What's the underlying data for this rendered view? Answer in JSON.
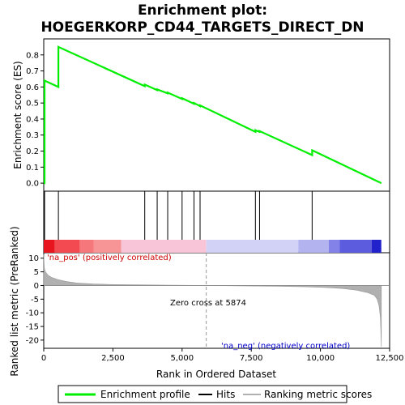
{
  "chart_data": {
    "type": "line",
    "title_line1": "Enrichment plot:",
    "title_line2": "HOEGERKORP_CD44_TARGETS_DIRECT_DN",
    "es_ylabel": "Enrichment score (ES)",
    "rank_ylabel": "Ranked list metric (PreRanked)",
    "xlabel": "Rank in Ordered Dataset",
    "xlim": [
      0,
      12500
    ],
    "es_ylim": [
      -0.05,
      0.9
    ],
    "rank_ylim": [
      -23,
      12
    ],
    "x_ticks": [
      0,
      2500,
      5000,
      7500,
      10000,
      12500
    ],
    "x_tick_labels": [
      "0",
      "2,500",
      "5,000",
      "7,500",
      "10,000",
      "12,500"
    ],
    "es_ticks": [
      0.0,
      0.1,
      0.2,
      0.3,
      0.4,
      0.5,
      0.6,
      0.7,
      0.8
    ],
    "es_tick_labels": [
      "0.0",
      "0.1",
      "0.2",
      "0.3",
      "0.4",
      "0.5",
      "0.6",
      "0.7",
      "0.8"
    ],
    "rank_ticks": [
      10,
      5,
      0,
      -5,
      -10,
      -15,
      -20
    ],
    "rank_tick_labels": [
      "10",
      "5",
      "0",
      "-5",
      "-10",
      "-15",
      "-20"
    ],
    "es_profile": {
      "x": [
        0,
        30,
        30,
        530,
        530,
        3650,
        3650,
        4100,
        4100,
        4480,
        4480,
        5000,
        5000,
        5430,
        5430,
        5650,
        5650,
        7650,
        7650,
        7800,
        7800,
        9700,
        9700,
        12200
      ],
      "y": [
        0.0,
        0.0,
        0.64,
        0.6,
        0.85,
        0.605,
        0.615,
        0.58,
        0.585,
        0.56,
        0.565,
        0.525,
        0.53,
        0.495,
        0.5,
        0.48,
        0.485,
        0.32,
        0.33,
        0.32,
        0.325,
        0.175,
        0.205,
        0.0
      ]
    },
    "hits": [
      30,
      530,
      3650,
      4100,
      4480,
      5000,
      5430,
      5650,
      7650,
      7800,
      9700
    ],
    "heatmap_segments": [
      {
        "x0": 0,
        "x1": 400,
        "color": "#e8141e"
      },
      {
        "x0": 400,
        "x1": 1300,
        "color": "#f24a50"
      },
      {
        "x0": 1300,
        "x1": 1800,
        "color": "#f5777c"
      },
      {
        "x0": 1800,
        "x1": 2800,
        "color": "#f79495"
      },
      {
        "x0": 2800,
        "x1": 5874,
        "color": "#f8c4d8"
      },
      {
        "x0": 5874,
        "x1": 9200,
        "color": "#d2d2f6"
      },
      {
        "x0": 9200,
        "x1": 10300,
        "color": "#b3b3f0"
      },
      {
        "x0": 10300,
        "x1": 10700,
        "color": "#8282e8"
      },
      {
        "x0": 10700,
        "x1": 11850,
        "color": "#5c5cdf"
      },
      {
        "x0": 11850,
        "x1": 12200,
        "color": "#2222cc"
      }
    ],
    "ranked_metric": {
      "x": [
        0,
        20,
        60,
        150,
        300,
        500,
        800,
        1200,
        1800,
        2500,
        3500,
        4500,
        5400,
        5874,
        6500,
        7500,
        8500,
        9500,
        10200,
        10800,
        11300,
        11700,
        11950,
        12050,
        12120,
        12170,
        12200
      ],
      "y": [
        11.5,
        6.5,
        5.0,
        3.8,
        2.9,
        2.2,
        1.5,
        0.9,
        0.55,
        0.35,
        0.22,
        0.12,
        0.04,
        0.0,
        -0.08,
        -0.18,
        -0.3,
        -0.5,
        -0.75,
        -1.1,
        -1.7,
        -2.6,
        -3.6,
        -5.0,
        -7.5,
        -12.0,
        -22.5
      ]
    },
    "zero_cross": 5874,
    "zero_cross_label": "Zero cross at 5874",
    "pos_label": "'na_pos' (positively correlated)",
    "neg_label": "'na_neg' (negatively correlated)",
    "legend": [
      "Enrichment profile",
      "Hits",
      "Ranking metric scores"
    ],
    "colors": {
      "profile": "#00ee00",
      "hits": "#000000",
      "metric_fill": "#b0b0b0",
      "pos_label": "#cc0000",
      "neg_label": "#0000cc",
      "zero_line": "#999999"
    }
  }
}
